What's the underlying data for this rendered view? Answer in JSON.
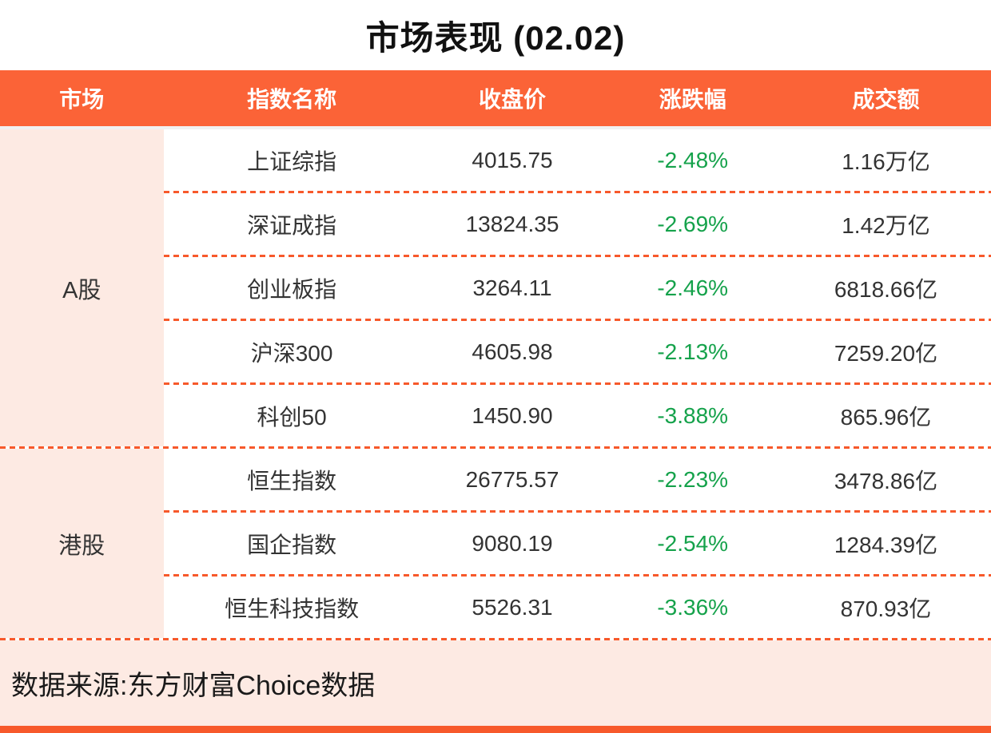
{
  "title": "市场表现 (02.02)",
  "table": {
    "columns": [
      "市场",
      "指数名称",
      "收盘价",
      "涨跌幅",
      "成交额"
    ],
    "sections": [
      {
        "market": "A股",
        "rows": [
          {
            "name": "上证综指",
            "close": "4015.75",
            "change": "-2.48%",
            "turnover": "1.16万亿"
          },
          {
            "name": "深证成指",
            "close": "13824.35",
            "change": "-2.69%",
            "turnover": "1.42万亿"
          },
          {
            "name": "创业板指",
            "close": "3264.11",
            "change": "-2.46%",
            "turnover": "6818.66亿"
          },
          {
            "name": "沪深300",
            "close": "4605.98",
            "change": "-2.13%",
            "turnover": "7259.20亿"
          },
          {
            "name": "科创50",
            "close": "1450.90",
            "change": "-3.88%",
            "turnover": "865.96亿"
          }
        ]
      },
      {
        "market": "港股",
        "rows": [
          {
            "name": "恒生指数",
            "close": "26775.57",
            "change": "-2.23%",
            "turnover": "3478.86亿"
          },
          {
            "name": "国企指数",
            "close": "9080.19",
            "change": "-2.54%",
            "turnover": "1284.39亿"
          },
          {
            "name": "恒生科技指数",
            "close": "5526.31",
            "change": "-3.36%",
            "turnover": "870.93亿"
          }
        ]
      }
    ]
  },
  "footer": {
    "source": "数据来源:东方财富Choice数据"
  },
  "colors": {
    "accent_orange": "#FB6337",
    "divider_orange": "#F7592B",
    "light_pink": "#FDEAE3",
    "negative_green": "#15A24B",
    "text_dark": "#333333"
  }
}
